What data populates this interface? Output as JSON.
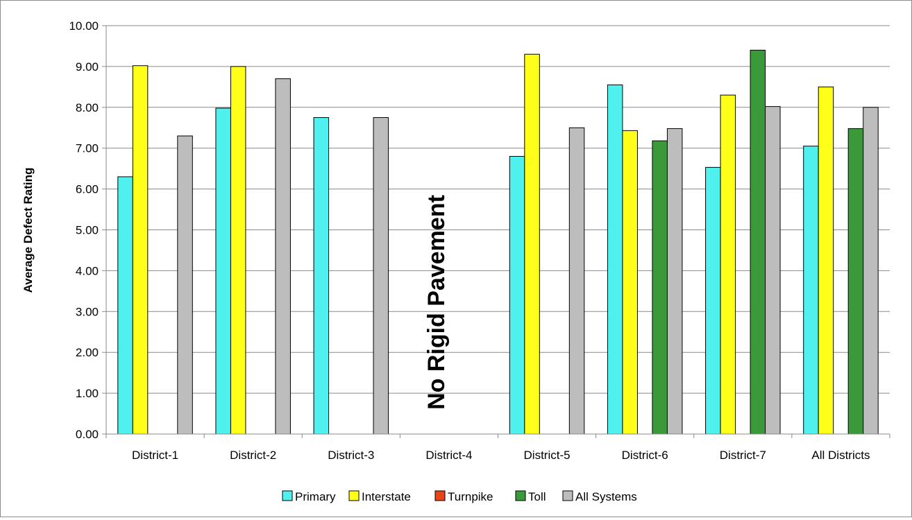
{
  "chart_data": {
    "type": "bar",
    "ylabel": "Average Defect Rating",
    "ylim": [
      0,
      10
    ],
    "ytick_step": 1,
    "ytick_labels": [
      "0.00",
      "1.00",
      "2.00",
      "3.00",
      "4.00",
      "5.00",
      "6.00",
      "7.00",
      "8.00",
      "9.00",
      "10.00"
    ],
    "grid": true,
    "legend_position": "bottom",
    "categories": [
      "District-1",
      "District-2",
      "District-3",
      "District-4",
      "District-5",
      "District-6",
      "District-7",
      "All Districts"
    ],
    "series": [
      {
        "name": "Primary",
        "color": "#4FF0EE",
        "values": [
          6.3,
          7.98,
          7.75,
          null,
          6.8,
          8.55,
          6.53,
          7.05
        ]
      },
      {
        "name": "Interstate",
        "color": "#FFFF1A",
        "values": [
          9.02,
          9.0,
          null,
          null,
          9.3,
          7.43,
          8.3,
          8.5
        ]
      },
      {
        "name": "Turnpike",
        "color": "#E84418",
        "values": [
          null,
          null,
          null,
          null,
          null,
          null,
          null,
          null
        ]
      },
      {
        "name": "Toll",
        "color": "#3A9A3A",
        "values": [
          null,
          null,
          null,
          null,
          null,
          7.18,
          9.4,
          7.48
        ]
      },
      {
        "name": "All Systems",
        "color": "#BDBDBD",
        "values": [
          7.3,
          8.7,
          7.75,
          null,
          7.5,
          7.48,
          8.02,
          8.0
        ]
      }
    ],
    "annotations": [
      {
        "text": "No Rigid Pavement",
        "category": "District-4"
      }
    ]
  }
}
